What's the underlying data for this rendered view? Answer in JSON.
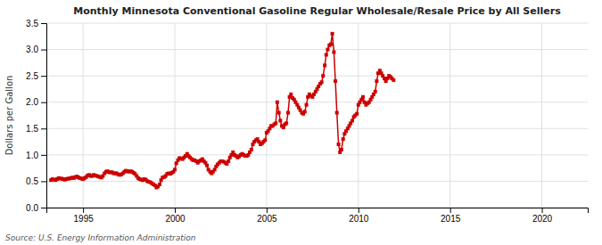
{
  "chart_data": {
    "type": "line",
    "title": "Monthly Minnesota Conventional Gasoline Regular Wholesale/Resale Price by All Sellers",
    "ylabel": "Dollars per Gallon",
    "annotations": [
      "Source: U.S. Energy Information Administration"
    ],
    "color": "#cc0000",
    "marker": "square",
    "grid": true,
    "xlim": [
      1993.0,
      2022.5
    ],
    "ylim": [
      0.0,
      3.5
    ],
    "xticks": [
      1995,
      2000,
      2005,
      2010,
      2015,
      2020
    ],
    "yticks": [
      {
        "value": 0.0,
        "label": "0.0"
      },
      0.5,
      {
        "value": 1.0,
        "label": "1.0"
      },
      1.5,
      {
        "value": 2.0,
        "label": "2.0"
      },
      2.5,
      {
        "value": 3.0,
        "label": "3.0"
      },
      3.5
    ],
    "x": [
      1993.25,
      1993.33,
      1993.42,
      1993.5,
      1993.58,
      1993.67,
      1993.75,
      1993.83,
      1993.92,
      1994.0,
      1994.08,
      1994.17,
      1994.25,
      1994.33,
      1994.42,
      1994.5,
      1994.58,
      1994.67,
      1994.75,
      1994.83,
      1994.92,
      1995.0,
      1995.08,
      1995.17,
      1995.25,
      1995.33,
      1995.42,
      1995.5,
      1995.58,
      1995.67,
      1995.75,
      1995.83,
      1995.92,
      1996.0,
      1996.08,
      1996.17,
      1996.25,
      1996.33,
      1996.42,
      1996.5,
      1996.58,
      1996.67,
      1996.75,
      1996.83,
      1996.92,
      1997.0,
      1997.08,
      1997.17,
      1997.25,
      1997.33,
      1997.42,
      1997.5,
      1997.58,
      1997.67,
      1997.75,
      1997.83,
      1997.92,
      1998.0,
      1998.08,
      1998.17,
      1998.25,
      1998.33,
      1998.42,
      1998.5,
      1998.58,
      1998.67,
      1998.75,
      1998.83,
      1998.92,
      1999.0,
      1999.08,
      1999.17,
      1999.25,
      1999.33,
      1999.42,
      1999.5,
      1999.58,
      1999.67,
      1999.75,
      1999.83,
      1999.92,
      2000.0,
      2000.08,
      2000.17,
      2000.25,
      2000.33,
      2000.42,
      2000.5,
      2000.58,
      2000.67,
      2000.75,
      2000.83,
      2000.92,
      2001.0,
      2001.08,
      2001.17,
      2001.25,
      2001.33,
      2001.42,
      2001.5,
      2001.58,
      2001.67,
      2001.75,
      2001.83,
      2001.92,
      2002.0,
      2002.08,
      2002.17,
      2002.25,
      2002.33,
      2002.42,
      2002.5,
      2002.58,
      2002.67,
      2002.75,
      2002.83,
      2002.92,
      2003.0,
      2003.08,
      2003.17,
      2003.25,
      2003.33,
      2003.42,
      2003.5,
      2003.58,
      2003.67,
      2003.75,
      2003.83,
      2003.92,
      2004.0,
      2004.08,
      2004.17,
      2004.25,
      2004.33,
      2004.42,
      2004.5,
      2004.58,
      2004.67,
      2004.75,
      2004.83,
      2004.92,
      2005.0,
      2005.08,
      2005.17,
      2005.25,
      2005.33,
      2005.42,
      2005.5,
      2005.58,
      2005.67,
      2005.75,
      2005.83,
      2005.92,
      2006.0,
      2006.08,
      2006.17,
      2006.25,
      2006.33,
      2006.42,
      2006.5,
      2006.58,
      2006.67,
      2006.75,
      2006.83,
      2006.92,
      2007.0,
      2007.08,
      2007.17,
      2007.25,
      2007.33,
      2007.42,
      2007.5,
      2007.58,
      2007.67,
      2007.75,
      2007.83,
      2007.92,
      2008.0,
      2008.08,
      2008.17,
      2008.25,
      2008.33,
      2008.42,
      2008.5,
      2008.58,
      2008.67,
      2008.75,
      2008.83,
      2008.92,
      2009.0,
      2009.08,
      2009.17,
      2009.25,
      2009.33,
      2009.42,
      2009.5,
      2009.58,
      2009.67,
      2009.75,
      2009.83,
      2009.92,
      2010.0,
      2010.08,
      2010.17,
      2010.25,
      2010.33,
      2010.42,
      2010.5,
      2010.58,
      2010.67,
      2010.75,
      2010.83,
      2010.92,
      2011.0,
      2011.08,
      2011.17,
      2011.25,
      2011.33,
      2011.42,
      2011.5,
      2011.58,
      2011.67,
      2011.75,
      2011.83,
      2011.92
    ],
    "values": [
      0.52,
      0.54,
      0.53,
      0.52,
      0.54,
      0.56,
      0.55,
      0.55,
      0.54,
      0.53,
      0.54,
      0.55,
      0.55,
      0.56,
      0.57,
      0.56,
      0.58,
      0.59,
      0.57,
      0.56,
      0.55,
      0.54,
      0.56,
      0.58,
      0.61,
      0.62,
      0.6,
      0.6,
      0.62,
      0.61,
      0.6,
      0.59,
      0.58,
      0.57,
      0.6,
      0.65,
      0.68,
      0.69,
      0.67,
      0.67,
      0.67,
      0.65,
      0.65,
      0.65,
      0.63,
      0.62,
      0.63,
      0.65,
      0.68,
      0.7,
      0.69,
      0.68,
      0.69,
      0.68,
      0.66,
      0.64,
      0.6,
      0.56,
      0.54,
      0.53,
      0.52,
      0.54,
      0.53,
      0.5,
      0.49,
      0.48,
      0.46,
      0.44,
      0.42,
      0.38,
      0.4,
      0.44,
      0.52,
      0.57,
      0.58,
      0.6,
      0.64,
      0.65,
      0.64,
      0.66,
      0.68,
      0.72,
      0.84,
      0.9,
      0.94,
      0.93,
      0.92,
      0.95,
      0.98,
      1.02,
      0.98,
      0.95,
      0.92,
      0.9,
      0.9,
      0.88,
      0.85,
      0.88,
      0.9,
      0.92,
      0.88,
      0.85,
      0.8,
      0.72,
      0.68,
      0.65,
      0.68,
      0.72,
      0.78,
      0.82,
      0.85,
      0.88,
      0.88,
      0.87,
      0.85,
      0.83,
      0.88,
      0.95,
      1.0,
      1.05,
      1.0,
      0.98,
      0.95,
      0.97,
      1.0,
      1.02,
      1.0,
      0.98,
      0.98,
      1.0,
      1.05,
      1.1,
      1.2,
      1.25,
      1.28,
      1.3,
      1.25,
      1.2,
      1.22,
      1.25,
      1.28,
      1.42,
      1.45,
      1.5,
      1.55,
      1.55,
      1.58,
      1.6,
      2.0,
      1.8,
      1.65,
      1.55,
      1.52,
      1.58,
      1.6,
      1.8,
      2.1,
      2.15,
      2.08,
      2.05,
      2.0,
      1.95,
      1.9,
      1.85,
      1.8,
      1.78,
      1.82,
      1.95,
      2.1,
      2.15,
      2.12,
      2.1,
      2.15,
      2.2,
      2.25,
      2.3,
      2.35,
      2.38,
      2.5,
      2.7,
      2.9,
      3.0,
      3.08,
      3.1,
      3.3,
      2.95,
      2.4,
      1.8,
      1.2,
      1.05,
      1.1,
      1.3,
      1.4,
      1.45,
      1.5,
      1.55,
      1.6,
      1.65,
      1.72,
      1.75,
      1.78,
      1.95,
      2.0,
      2.05,
      2.1,
      2.0,
      1.95,
      1.98,
      2.0,
      2.05,
      2.1,
      2.15,
      2.2,
      2.4,
      2.55,
      2.6,
      2.55,
      2.5,
      2.45,
      2.4,
      2.45,
      2.5,
      2.48,
      2.45,
      2.42
    ]
  }
}
